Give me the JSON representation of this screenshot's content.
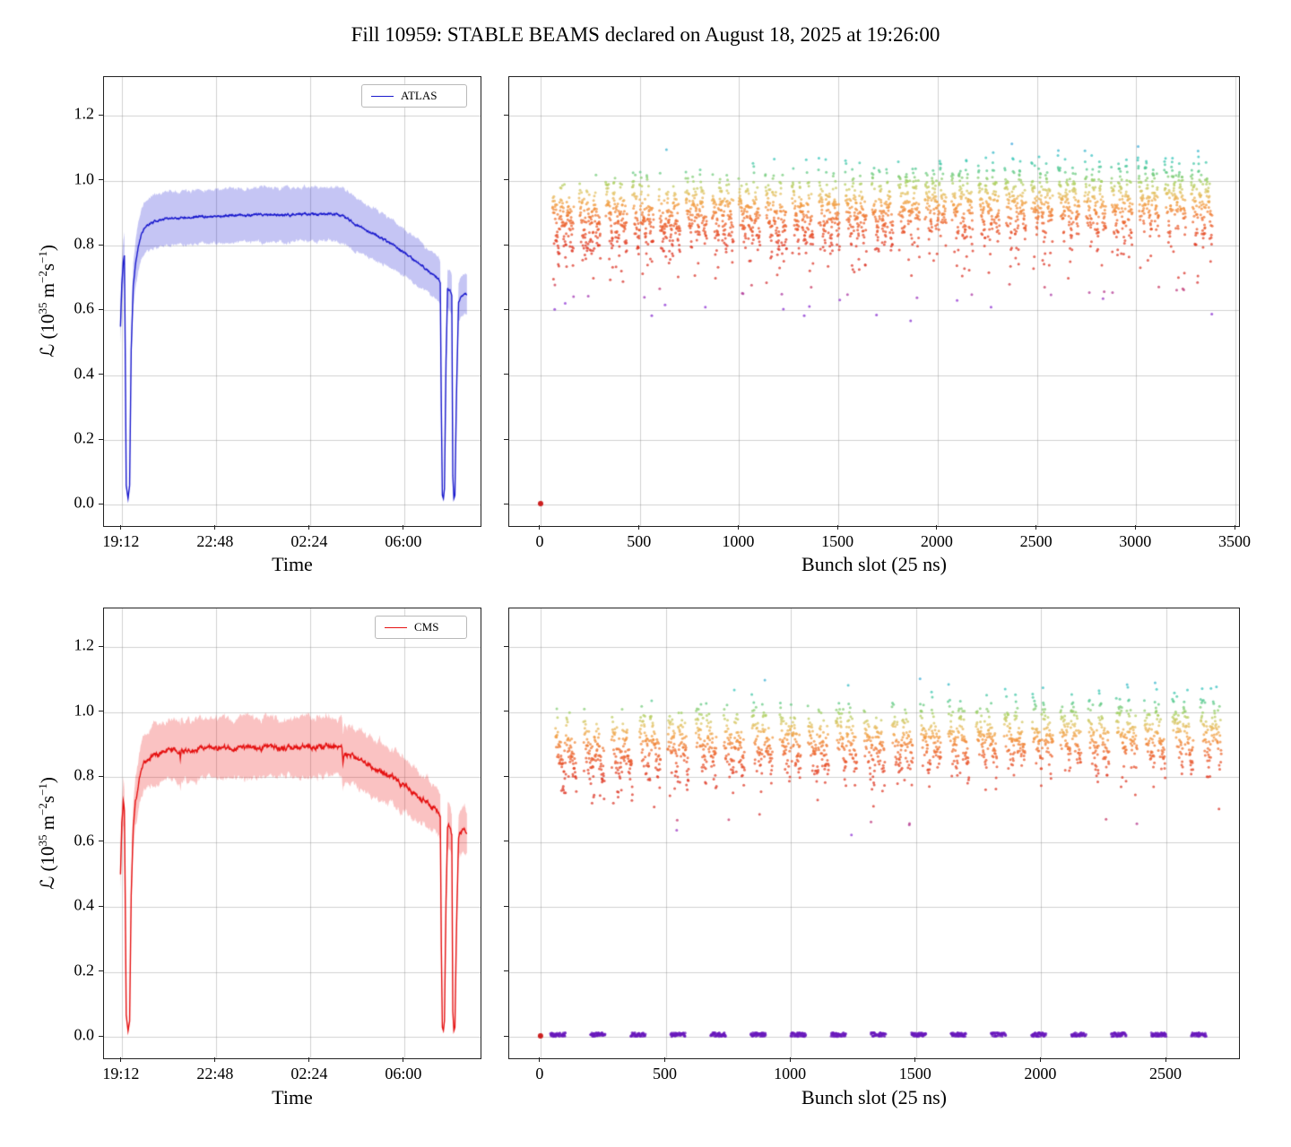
{
  "title": "Fill 10959: STABLE BEAMS declared on August 18, 2025 at 19:26:00",
  "chart_data": [
    {
      "id": "atlas-luminosity-vs-time",
      "type": "line",
      "legend": "ATLAS",
      "color": "#1a1acd",
      "band_color": "rgba(40,40,215,0.27)",
      "xlabel": "Time",
      "ylabel": "ℒ (10³⁵ m⁻²s⁻¹)",
      "ylabel_parts": [
        "ℒ (10",
        "35",
        " m",
        "−2",
        "s",
        "−1",
        ")"
      ],
      "x_unit": "hours since 19:12",
      "xlim": [
        -0.68,
        13.72
      ],
      "ylim": [
        -0.065,
        1.32
      ],
      "xticks": [
        {
          "v": 0,
          "label": "19:12"
        },
        {
          "v": 3.6,
          "label": "22:48"
        },
        {
          "v": 7.2,
          "label": "02:24"
        },
        {
          "v": 10.8,
          "label": "06:00"
        }
      ],
      "yticks": [
        {
          "v": 0.0,
          "label": "0.0"
        },
        {
          "v": 0.2,
          "label": "0.2"
        },
        {
          "v": 0.4,
          "label": "0.4"
        },
        {
          "v": 0.6,
          "label": "0.6"
        },
        {
          "v": 0.8,
          "label": "0.8"
        },
        {
          "v": 1.0,
          "label": "1.0"
        },
        {
          "v": 1.2,
          "label": "1.2"
        }
      ],
      "band_frac": 0.088,
      "line_noise": 0.004,
      "band_noise": 0.006,
      "seed": 11,
      "points": [
        [
          -0.05,
          0.55
        ],
        [
          0.0,
          0.68
        ],
        [
          0.06,
          0.75
        ],
        [
          0.1,
          0.77
        ],
        [
          0.13,
          0.5
        ],
        [
          0.17,
          0.06
        ],
        [
          0.24,
          0.02
        ],
        [
          0.3,
          0.06
        ],
        [
          0.36,
          0.48
        ],
        [
          0.44,
          0.68
        ],
        [
          0.52,
          0.74
        ],
        [
          0.62,
          0.79
        ],
        [
          0.75,
          0.835
        ],
        [
          0.9,
          0.858
        ],
        [
          1.1,
          0.87
        ],
        [
          1.4,
          0.879
        ],
        [
          1.8,
          0.885
        ],
        [
          2.4,
          0.888
        ],
        [
          3.0,
          0.89
        ],
        [
          4.0,
          0.892
        ],
        [
          5.0,
          0.894
        ],
        [
          6.0,
          0.895
        ],
        [
          7.0,
          0.896
        ],
        [
          7.8,
          0.897
        ],
        [
          8.3,
          0.896
        ],
        [
          8.5,
          0.89
        ],
        [
          8.7,
          0.879
        ],
        [
          9.0,
          0.863
        ],
        [
          9.4,
          0.846
        ],
        [
          9.8,
          0.829
        ],
        [
          10.2,
          0.811
        ],
        [
          10.5,
          0.796
        ],
        [
          10.7,
          0.784
        ],
        [
          11.0,
          0.766
        ],
        [
          11.3,
          0.748
        ],
        [
          11.6,
          0.73
        ],
        [
          11.9,
          0.712
        ],
        [
          12.1,
          0.698
        ],
        [
          12.18,
          0.688
        ],
        [
          12.22,
          0.3
        ],
        [
          12.26,
          0.03
        ],
        [
          12.3,
          0.02
        ],
        [
          12.34,
          0.05
        ],
        [
          12.4,
          0.44
        ],
        [
          12.46,
          0.662
        ],
        [
          12.55,
          0.66
        ],
        [
          12.62,
          0.642
        ],
        [
          12.66,
          0.09
        ],
        [
          12.7,
          0.02
        ],
        [
          12.74,
          0.03
        ],
        [
          12.8,
          0.34
        ],
        [
          12.88,
          0.628
        ],
        [
          13.0,
          0.645
        ],
        [
          13.1,
          0.65
        ],
        [
          13.2,
          0.648
        ]
      ]
    },
    {
      "id": "atlas-luminosity-per-bunch",
      "type": "scatter",
      "xlabel": "Bunch slot (25 ns)",
      "xlim": [
        -158,
        3518
      ],
      "ylim": [
        -0.065,
        1.32
      ],
      "xticks": [
        {
          "v": 0,
          "label": "0"
        },
        {
          "v": 500,
          "label": "500"
        },
        {
          "v": 1000,
          "label": "1000"
        },
        {
          "v": 1500,
          "label": "1500"
        },
        {
          "v": 2000,
          "label": "2000"
        },
        {
          "v": 2500,
          "label": "2500"
        },
        {
          "v": 3000,
          "label": "3000"
        },
        {
          "v": 3500,
          "label": "3500"
        }
      ],
      "yticks": [
        {
          "v": 0.0,
          "label": null
        },
        {
          "v": 0.2,
          "label": null
        },
        {
          "v": 0.4,
          "label": null
        },
        {
          "v": 0.6,
          "label": null
        },
        {
          "v": 0.8,
          "label": null
        },
        {
          "v": 1.0,
          "label": null
        },
        {
          "v": 1.2,
          "label": null
        }
      ],
      "trains": {
        "count": 25,
        "first_slot": 60,
        "period": 134,
        "bunches_per_train": 108,
        "sub_batch": 36
      },
      "value_model": {
        "head": 0.958,
        "tail_drop": 0.15,
        "noise_sd": 0.045,
        "trend_per_1000_slots": 0.02,
        "train_jitter": 0.015,
        "low_outlier_prob": 0.055,
        "low_outlier_extra": [
          0.1,
          0.26
        ],
        "clamp": [
          0.53,
          1.26
        ]
      },
      "point_style": {
        "radius": 1.5,
        "alpha": 0.75
      },
      "zero_point": {
        "slot": 0,
        "value": 0.004,
        "color": "#cc2020",
        "radius": 3
      },
      "colormap_stops": [
        [
          0.45,
          "#6a1abc"
        ],
        [
          0.63,
          "#9135d6"
        ],
        [
          0.665,
          "#c13a77"
        ],
        [
          0.69,
          "#d8352b"
        ],
        [
          0.8,
          "#e03b26"
        ],
        [
          0.87,
          "#ec642f"
        ],
        [
          0.925,
          "#f29c42"
        ],
        [
          0.962,
          "#e3c467"
        ],
        [
          0.995,
          "#a9d162"
        ],
        [
          1.03,
          "#5bc98a"
        ],
        [
          1.07,
          "#35c6bb"
        ],
        [
          1.11,
          "#3fa8dc"
        ],
        [
          1.26,
          "#4478d2"
        ]
      ],
      "seed": 101
    },
    {
      "id": "cms-luminosity-vs-time",
      "type": "line",
      "legend": "CMS",
      "color": "#e51212",
      "band_color": "rgba(235,30,30,0.27)",
      "xlabel": "Time",
      "ylabel": "ℒ (10³⁵ m⁻²s⁻¹)",
      "ylabel_parts": [
        "ℒ (10",
        "35",
        " m",
        "−2",
        "s",
        "−1",
        ")"
      ],
      "x_unit": "hours since 19:12",
      "xlim": [
        -0.68,
        13.72
      ],
      "ylim": [
        -0.065,
        1.32
      ],
      "xticks": [
        {
          "v": 0,
          "label": "19:12"
        },
        {
          "v": 3.6,
          "label": "22:48"
        },
        {
          "v": 7.2,
          "label": "02:24"
        },
        {
          "v": 10.8,
          "label": "06:00"
        }
      ],
      "yticks": [
        {
          "v": 0.0,
          "label": "0.0"
        },
        {
          "v": 0.2,
          "label": "0.2"
        },
        {
          "v": 0.4,
          "label": "0.4"
        },
        {
          "v": 0.6,
          "label": "0.6"
        },
        {
          "v": 0.8,
          "label": "0.8"
        },
        {
          "v": 1.0,
          "label": "1.0"
        },
        {
          "v": 1.2,
          "label": "1.2"
        }
      ],
      "band_frac": 0.097,
      "line_noise": 0.009,
      "band_noise": 0.01,
      "seed": 22,
      "points": [
        [
          -0.05,
          0.5
        ],
        [
          0.0,
          0.66
        ],
        [
          0.06,
          0.73
        ],
        [
          0.1,
          0.7
        ],
        [
          0.13,
          0.45
        ],
        [
          0.17,
          0.07
        ],
        [
          0.24,
          0.02
        ],
        [
          0.3,
          0.05
        ],
        [
          0.36,
          0.44
        ],
        [
          0.44,
          0.66
        ],
        [
          0.52,
          0.72
        ],
        [
          0.62,
          0.77
        ],
        [
          0.75,
          0.82
        ],
        [
          0.9,
          0.851
        ],
        [
          1.1,
          0.865
        ],
        [
          1.4,
          0.876
        ],
        [
          1.8,
          0.882
        ],
        [
          2.2,
          0.885
        ],
        [
          2.24,
          0.862
        ],
        [
          2.3,
          0.884
        ],
        [
          3.0,
          0.888
        ],
        [
          4.0,
          0.89
        ],
        [
          5.0,
          0.891
        ],
        [
          6.0,
          0.892
        ],
        [
          7.0,
          0.893
        ],
        [
          7.8,
          0.895
        ],
        [
          8.3,
          0.893
        ],
        [
          8.42,
          0.888
        ],
        [
          8.46,
          0.845
        ],
        [
          8.52,
          0.872
        ],
        [
          8.7,
          0.872
        ],
        [
          9.0,
          0.856
        ],
        [
          9.4,
          0.84
        ],
        [
          9.8,
          0.824
        ],
        [
          10.2,
          0.806
        ],
        [
          10.5,
          0.792
        ],
        [
          10.7,
          0.78
        ],
        [
          11.0,
          0.762
        ],
        [
          11.3,
          0.744
        ],
        [
          11.6,
          0.726
        ],
        [
          11.9,
          0.708
        ],
        [
          12.1,
          0.694
        ],
        [
          12.18,
          0.684
        ],
        [
          12.22,
          0.28
        ],
        [
          12.26,
          0.03
        ],
        [
          12.3,
          0.02
        ],
        [
          12.34,
          0.05
        ],
        [
          12.4,
          0.42
        ],
        [
          12.46,
          0.652
        ],
        [
          12.55,
          0.65
        ],
        [
          12.62,
          0.632
        ],
        [
          12.66,
          0.08
        ],
        [
          12.7,
          0.02
        ],
        [
          12.74,
          0.03
        ],
        [
          12.8,
          0.33
        ],
        [
          12.88,
          0.618
        ],
        [
          13.0,
          0.632
        ],
        [
          13.1,
          0.638
        ],
        [
          13.2,
          0.635
        ]
      ]
    },
    {
      "id": "cms-luminosity-per-bunch",
      "type": "scatter",
      "xlabel": "Bunch slot (25 ns)",
      "xlim": [
        -125,
        2790
      ],
      "ylim": [
        -0.065,
        1.32
      ],
      "xticks": [
        {
          "v": 0,
          "label": "0"
        },
        {
          "v": 500,
          "label": "500"
        },
        {
          "v": 1000,
          "label": "1000"
        },
        {
          "v": 1500,
          "label": "1500"
        },
        {
          "v": 2000,
          "label": "2000"
        },
        {
          "v": 2500,
          "label": "2500"
        }
      ],
      "yticks": [
        {
          "v": 0.0,
          "label": null
        },
        {
          "v": 0.2,
          "label": null
        },
        {
          "v": 0.4,
          "label": null
        },
        {
          "v": 0.6,
          "label": null
        },
        {
          "v": 0.8,
          "label": null
        },
        {
          "v": 1.0,
          "label": null
        },
        {
          "v": 1.2,
          "label": null
        }
      ],
      "trains": {
        "count": 24,
        "first_slot": 60,
        "period": 112,
        "bunches_per_train": 84,
        "sub_batch": 42
      },
      "value_model": {
        "head": 0.958,
        "tail_drop": 0.15,
        "noise_sd": 0.045,
        "trend_per_1000_slots": 0.024,
        "train_jitter": 0.015,
        "low_outlier_prob": 0.012,
        "low_outlier_extra": [
          0.1,
          0.24
        ],
        "clamp": [
          0.53,
          1.26
        ]
      },
      "noncolliding": {
        "groups": 17,
        "first_slot": 40,
        "period": 160,
        "bunches": 60,
        "value": 0.008,
        "spread": 0.006,
        "skip_prob": 0.2
      },
      "point_style": {
        "radius": 1.5,
        "alpha": 0.75
      },
      "zero_point": {
        "slot": 0,
        "value": 0.004,
        "color": "#cc2020",
        "radius": 3
      },
      "colormap_stops": [
        [
          0.45,
          "#6a1abc"
        ],
        [
          0.63,
          "#9135d6"
        ],
        [
          0.665,
          "#c13a77"
        ],
        [
          0.69,
          "#d8352b"
        ],
        [
          0.8,
          "#e03b26"
        ],
        [
          0.87,
          "#ec642f"
        ],
        [
          0.925,
          "#f29c42"
        ],
        [
          0.962,
          "#e3c467"
        ],
        [
          0.995,
          "#a9d162"
        ],
        [
          1.03,
          "#5bc98a"
        ],
        [
          1.07,
          "#35c6bb"
        ],
        [
          1.11,
          "#3fa8dc"
        ],
        [
          1.26,
          "#4478d2"
        ]
      ],
      "seed": 202
    }
  ]
}
